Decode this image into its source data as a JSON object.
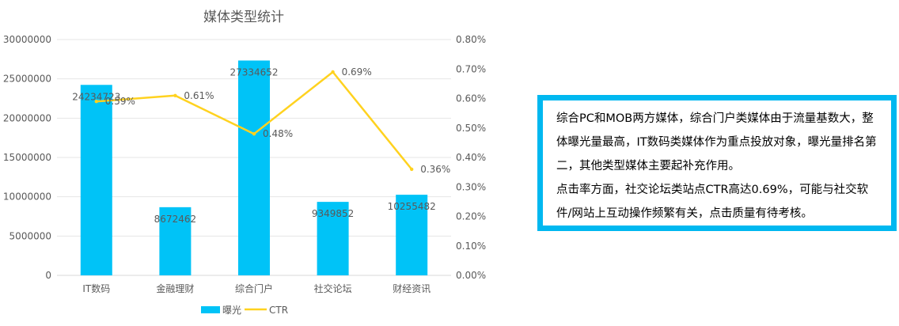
{
  "chart_data": {
    "type": "bar",
    "title": "媒体类型统计",
    "categories": [
      "IT数码",
      "金融理财",
      "综合门户",
      "社交论坛",
      "财经资讯"
    ],
    "series": [
      {
        "name": "曝光",
        "type": "bar",
        "axis": "left",
        "color": "#00c3f7",
        "values": [
          24234723,
          8672462,
          27334652,
          9349852,
          10255482
        ],
        "labels": [
          "24234723",
          "8672462",
          "27334652",
          "9349852",
          "10255482"
        ]
      },
      {
        "name": "CTR",
        "type": "line",
        "axis": "right",
        "color": "#ffd21f",
        "values": [
          0.59,
          0.61,
          0.48,
          0.69,
          0.36
        ],
        "labels": [
          "0.59%",
          "0.61%",
          "0.48%",
          "0.69%",
          "0.36%"
        ]
      }
    ],
    "y_left": {
      "range": [
        0,
        30000000
      ],
      "ticks": [
        "0",
        "5000000",
        "10000000",
        "15000000",
        "20000000",
        "25000000",
        "30000000"
      ]
    },
    "y_right": {
      "range": [
        0,
        0.8
      ],
      "ticks": [
        "0.00%",
        "0.10%",
        "0.20%",
        "0.30%",
        "0.40%",
        "0.50%",
        "0.60%",
        "0.70%",
        "0.80%"
      ]
    },
    "grid": true,
    "legend_position": "bottom"
  },
  "note": {
    "paragraphs": [
      "综合PC和MOB两方媒体，综合门户类媒体由于流量基数大，整体曝光量最高，IT数码类媒体作为重点投放对象，曝光量排名第二，其他类型媒体主要起补充作用。",
      "点击率方面，社交论坛类站点CTR高达0.69%，可能与社交软件/网站上互动操作频繁有关，点击质量有待考核。"
    ],
    "border_color": "#00b8f0"
  }
}
